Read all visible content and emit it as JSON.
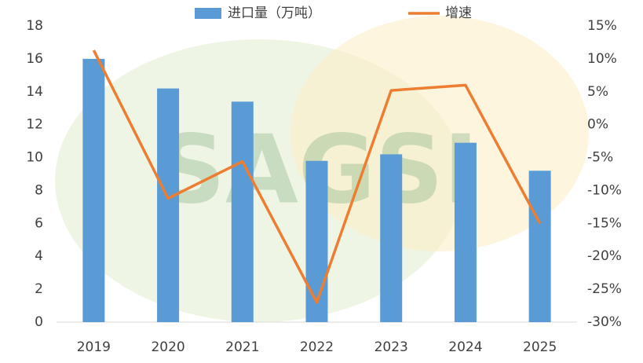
{
  "chart_data": {
    "type": "bar",
    "watermark": "SAGSI",
    "categories": [
      "2019",
      "2020",
      "2021",
      "2022",
      "2023",
      "2024",
      "2025"
    ],
    "series": [
      {
        "name": "进口量（万吨）",
        "type": "bar",
        "color": "#5b9bd5",
        "values": [
          16.0,
          14.2,
          13.4,
          9.8,
          10.2,
          10.9,
          9.2
        ]
      },
      {
        "name": "增速",
        "type": "line",
        "axis": "y2",
        "color": "#ed7d31",
        "values": [
          11.3,
          -11.2,
          -5.6,
          -27.0,
          5.2,
          6.0,
          -15.0
        ]
      }
    ],
    "ylim": [
      0,
      18
    ],
    "yticks": [
      0,
      2,
      4,
      6,
      8,
      10,
      12,
      14,
      16,
      18
    ],
    "y2lim": [
      -30,
      15
    ],
    "y2ticks": [
      {
        "value": -30,
        "label": "-30%"
      },
      {
        "value": -25,
        "label": "-25%"
      },
      {
        "value": -20,
        "label": "-20%"
      },
      {
        "value": -15,
        "label": "-15%"
      },
      {
        "value": -10,
        "label": "-10%"
      },
      {
        "value": -5,
        "label": "-5%"
      },
      {
        "value": 0,
        "label": "0%"
      },
      {
        "value": 5,
        "label": "5%"
      },
      {
        "value": 10,
        "label": "10%"
      },
      {
        "value": 15,
        "label": "15%"
      }
    ],
    "legend": "top"
  }
}
